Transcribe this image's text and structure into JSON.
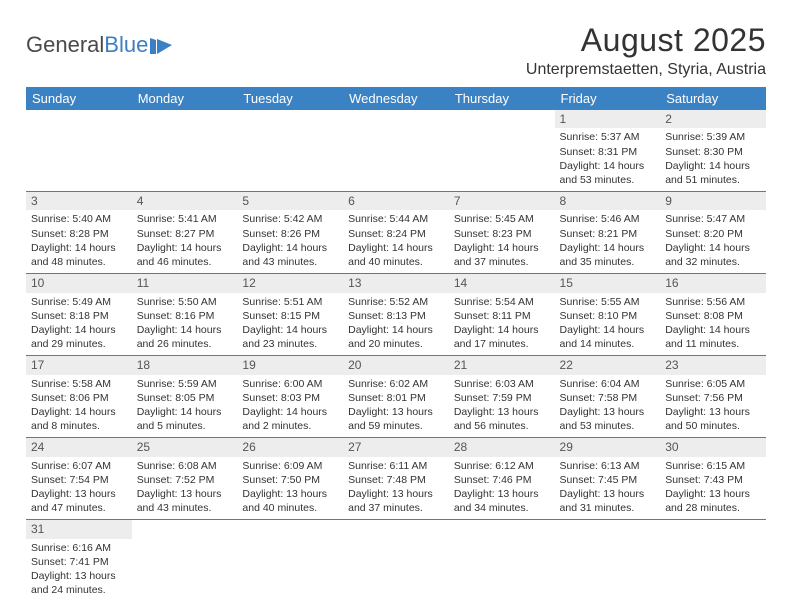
{
  "logo": {
    "text1": "General",
    "text2": "Blue"
  },
  "title": "August 2025",
  "subtitle": "Unterpremstaetten, Styria, Austria",
  "colors": {
    "header_bg": "#3b82c4",
    "header_fg": "#ffffff",
    "daynum_bg": "#ededed",
    "row_border": "#3b82c4",
    "text": "#333333",
    "logo_blue": "#3b7fc4"
  },
  "weekdays": [
    "Sunday",
    "Monday",
    "Tuesday",
    "Wednesday",
    "Thursday",
    "Friday",
    "Saturday"
  ],
  "weeks": [
    [
      null,
      null,
      null,
      null,
      null,
      {
        "n": "1",
        "r": "5:37 AM",
        "s": "8:31 PM",
        "d": "14 hours and 53 minutes."
      },
      {
        "n": "2",
        "r": "5:39 AM",
        "s": "8:30 PM",
        "d": "14 hours and 51 minutes."
      }
    ],
    [
      {
        "n": "3",
        "r": "5:40 AM",
        "s": "8:28 PM",
        "d": "14 hours and 48 minutes."
      },
      {
        "n": "4",
        "r": "5:41 AM",
        "s": "8:27 PM",
        "d": "14 hours and 46 minutes."
      },
      {
        "n": "5",
        "r": "5:42 AM",
        "s": "8:26 PM",
        "d": "14 hours and 43 minutes."
      },
      {
        "n": "6",
        "r": "5:44 AM",
        "s": "8:24 PM",
        "d": "14 hours and 40 minutes."
      },
      {
        "n": "7",
        "r": "5:45 AM",
        "s": "8:23 PM",
        "d": "14 hours and 37 minutes."
      },
      {
        "n": "8",
        "r": "5:46 AM",
        "s": "8:21 PM",
        "d": "14 hours and 35 minutes."
      },
      {
        "n": "9",
        "r": "5:47 AM",
        "s": "8:20 PM",
        "d": "14 hours and 32 minutes."
      }
    ],
    [
      {
        "n": "10",
        "r": "5:49 AM",
        "s": "8:18 PM",
        "d": "14 hours and 29 minutes."
      },
      {
        "n": "11",
        "r": "5:50 AM",
        "s": "8:16 PM",
        "d": "14 hours and 26 minutes."
      },
      {
        "n": "12",
        "r": "5:51 AM",
        "s": "8:15 PM",
        "d": "14 hours and 23 minutes."
      },
      {
        "n": "13",
        "r": "5:52 AM",
        "s": "8:13 PM",
        "d": "14 hours and 20 minutes."
      },
      {
        "n": "14",
        "r": "5:54 AM",
        "s": "8:11 PM",
        "d": "14 hours and 17 minutes."
      },
      {
        "n": "15",
        "r": "5:55 AM",
        "s": "8:10 PM",
        "d": "14 hours and 14 minutes."
      },
      {
        "n": "16",
        "r": "5:56 AM",
        "s": "8:08 PM",
        "d": "14 hours and 11 minutes."
      }
    ],
    [
      {
        "n": "17",
        "r": "5:58 AM",
        "s": "8:06 PM",
        "d": "14 hours and 8 minutes."
      },
      {
        "n": "18",
        "r": "5:59 AM",
        "s": "8:05 PM",
        "d": "14 hours and 5 minutes."
      },
      {
        "n": "19",
        "r": "6:00 AM",
        "s": "8:03 PM",
        "d": "14 hours and 2 minutes."
      },
      {
        "n": "20",
        "r": "6:02 AM",
        "s": "8:01 PM",
        "d": "13 hours and 59 minutes."
      },
      {
        "n": "21",
        "r": "6:03 AM",
        "s": "7:59 PM",
        "d": "13 hours and 56 minutes."
      },
      {
        "n": "22",
        "r": "6:04 AM",
        "s": "7:58 PM",
        "d": "13 hours and 53 minutes."
      },
      {
        "n": "23",
        "r": "6:05 AM",
        "s": "7:56 PM",
        "d": "13 hours and 50 minutes."
      }
    ],
    [
      {
        "n": "24",
        "r": "6:07 AM",
        "s": "7:54 PM",
        "d": "13 hours and 47 minutes."
      },
      {
        "n": "25",
        "r": "6:08 AM",
        "s": "7:52 PM",
        "d": "13 hours and 43 minutes."
      },
      {
        "n": "26",
        "r": "6:09 AM",
        "s": "7:50 PM",
        "d": "13 hours and 40 minutes."
      },
      {
        "n": "27",
        "r": "6:11 AM",
        "s": "7:48 PM",
        "d": "13 hours and 37 minutes."
      },
      {
        "n": "28",
        "r": "6:12 AM",
        "s": "7:46 PM",
        "d": "13 hours and 34 minutes."
      },
      {
        "n": "29",
        "r": "6:13 AM",
        "s": "7:45 PM",
        "d": "13 hours and 31 minutes."
      },
      {
        "n": "30",
        "r": "6:15 AM",
        "s": "7:43 PM",
        "d": "13 hours and 28 minutes."
      }
    ],
    [
      {
        "n": "31",
        "r": "6:16 AM",
        "s": "7:41 PM",
        "d": "13 hours and 24 minutes."
      },
      null,
      null,
      null,
      null,
      null,
      null
    ]
  ],
  "labels": {
    "sunrise": "Sunrise: ",
    "sunset": "Sunset: ",
    "daylight": "Daylight: "
  }
}
